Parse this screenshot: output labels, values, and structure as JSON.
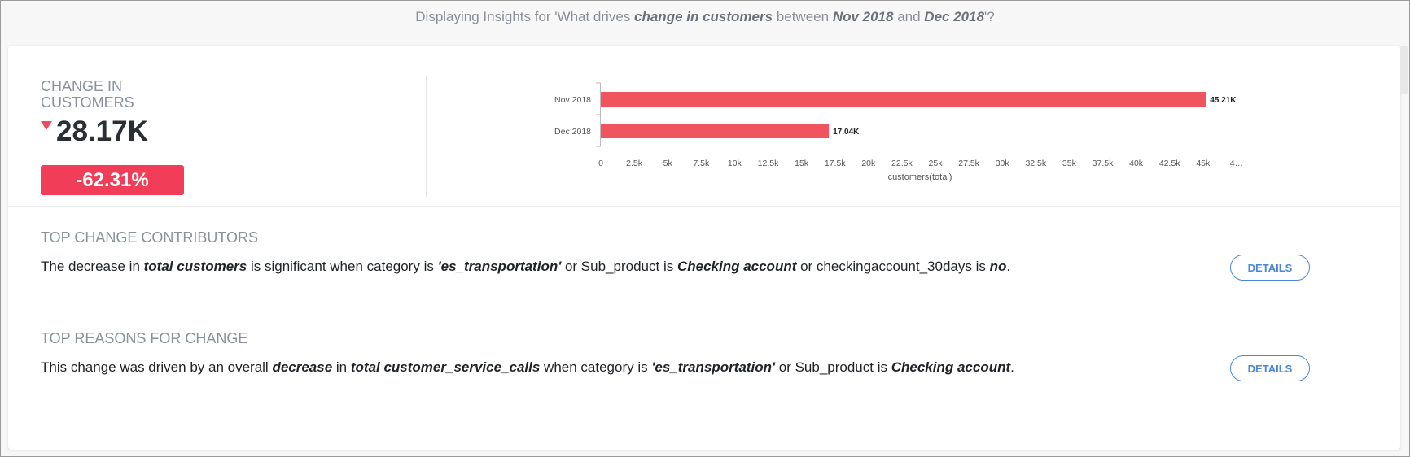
{
  "header": {
    "prefix": "Displaying Insights for 'What drives ",
    "metric": "change in customers",
    "between": " between ",
    "period_from": "Nov 2018",
    "and": " and ",
    "period_to": "Dec 2018",
    "suffix": "'?"
  },
  "kpi": {
    "label": "CHANGE IN CUSTOMERS",
    "value": "28.17K",
    "direction": "down",
    "percent": "-62.31%"
  },
  "colors": {
    "bar": "#f0545e",
    "badge": "#f23d58",
    "accent": "#4a86d9"
  },
  "chart_data": {
    "type": "bar",
    "orientation": "horizontal",
    "categories": [
      "Nov 2018",
      "Dec 2018"
    ],
    "values": [
      45210,
      17040
    ],
    "data_labels": [
      "45.21K",
      "17.04K"
    ],
    "xlabel": "customers(total)",
    "x_ticks": [
      "0",
      "2.5k",
      "5k",
      "7.5k",
      "10k",
      "12.5k",
      "15k",
      "17.5k",
      "20k",
      "22.5k",
      "25k",
      "27.5k",
      "30k",
      "32.5k",
      "35k",
      "37.5k",
      "40k",
      "42.5k",
      "45k",
      "4…"
    ],
    "xlim": [
      0,
      47500
    ]
  },
  "contributors": {
    "title": "TOP CHANGE CONTRIBUTORS",
    "t1": "The decrease in ",
    "b1": "total customers",
    "t2": " is significant when category is ",
    "b2": "'es_transportation'",
    "t3": " or Sub_product is ",
    "b3": "Checking account",
    "t4": " or checkingaccount_30days is ",
    "b4": "no",
    "t5": ".",
    "button": "DETAILS"
  },
  "reasons": {
    "title": "TOP REASONS FOR CHANGE",
    "t1": "This change was driven by an overall ",
    "b1": "decrease",
    "t2": " in ",
    "b2": "total customer_service_calls",
    "t3": " when category is ",
    "b3": "'es_transportation'",
    "t4": " or Sub_product is ",
    "b4": "Checking account",
    "t5": ".",
    "button": "DETAILS"
  }
}
